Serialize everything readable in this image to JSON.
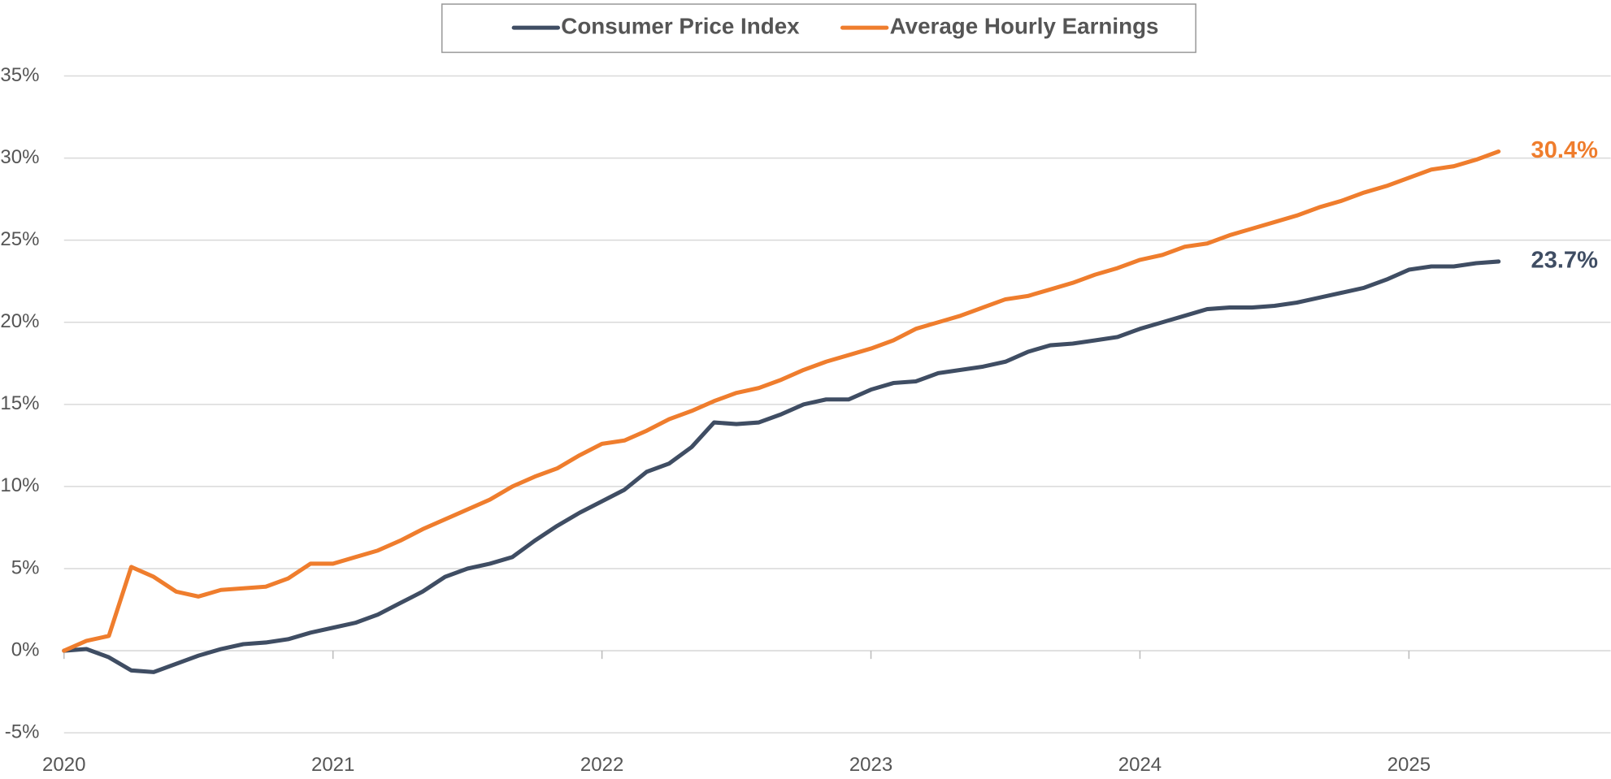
{
  "chart_data": {
    "type": "line",
    "x": [
      2020,
      2020.0833,
      2020.1667,
      2020.25,
      2020.3333,
      2020.4167,
      2020.5,
      2020.5833,
      2020.6667,
      2020.75,
      2020.8333,
      2020.9167,
      2021,
      2021.0833,
      2021.1667,
      2021.25,
      2021.3333,
      2021.4167,
      2021.5,
      2021.5833,
      2021.6667,
      2021.75,
      2021.8333,
      2021.9167,
      2022,
      2022.0833,
      2022.1667,
      2022.25,
      2022.3333,
      2022.4167,
      2022.5,
      2022.5833,
      2022.6667,
      2022.75,
      2022.8333,
      2022.9167,
      2023,
      2023.0833,
      2023.1667,
      2023.25,
      2023.3333,
      2023.4167,
      2023.5,
      2023.5833,
      2023.6667,
      2023.75,
      2023.8333,
      2023.9167,
      2024,
      2024.0833,
      2024.1667,
      2024.25,
      2024.3333,
      2024.4167,
      2024.5,
      2024.5833,
      2024.6667,
      2024.75,
      2024.8333,
      2024.9167,
      2025,
      2025.0833,
      2025.1667,
      2025.25,
      2025.3333
    ],
    "series": [
      {
        "name": "Consumer Price Index",
        "color": "#3f4d63",
        "end_label": "23.7%",
        "values": [
          0,
          0.1,
          -0.4,
          -1.2,
          -1.3,
          -0.8,
          -0.3,
          0.1,
          0.4,
          0.5,
          0.7,
          1.1,
          1.4,
          1.7,
          2.2,
          2.9,
          3.6,
          4.5,
          5.0,
          5.3,
          5.7,
          6.7,
          7.6,
          8.4,
          9.1,
          9.8,
          10.9,
          11.4,
          12.4,
          13.9,
          13.8,
          13.9,
          14.4,
          15.0,
          15.3,
          15.3,
          15.9,
          16.3,
          16.4,
          16.9,
          17.1,
          17.3,
          17.6,
          18.2,
          18.6,
          18.7,
          18.9,
          19.1,
          19.6,
          20.0,
          20.4,
          20.8,
          20.9,
          20.9,
          21.0,
          21.2,
          21.5,
          21.8,
          22.1,
          22.6,
          23.2,
          23.4,
          23.4,
          23.6,
          23.7
        ]
      },
      {
        "name": "Average Hourly Earnings",
        "color": "#ef7d2d",
        "end_label": "30.4%",
        "values": [
          0,
          0.6,
          0.9,
          5.1,
          4.5,
          3.6,
          3.3,
          3.7,
          3.8,
          3.9,
          4.4,
          5.3,
          5.3,
          5.7,
          6.1,
          6.7,
          7.4,
          8.0,
          8.6,
          9.2,
          10.0,
          10.6,
          11.1,
          11.9,
          12.6,
          12.8,
          13.4,
          14.1,
          14.6,
          15.2,
          15.7,
          16.0,
          16.5,
          17.1,
          17.6,
          18.0,
          18.4,
          18.9,
          19.6,
          20.0,
          20.4,
          20.9,
          21.4,
          21.6,
          22.0,
          22.4,
          22.9,
          23.3,
          23.8,
          24.1,
          24.6,
          24.8,
          25.3,
          25.7,
          26.1,
          26.5,
          27.0,
          27.4,
          27.9,
          28.3,
          28.8,
          29.3,
          29.5,
          29.9,
          30.4
        ]
      }
    ],
    "xlim": [
      2020,
      2025.75
    ],
    "xticks": [
      2020,
      2021,
      2022,
      2023,
      2024,
      2025
    ],
    "ylim": [
      -5,
      35
    ],
    "yticks": [
      {
        "value": -5,
        "label": "-5%"
      },
      {
        "value": 0,
        "label": "0%"
      },
      {
        "value": 5,
        "label": "5%"
      },
      {
        "value": 10,
        "label": "10%"
      },
      {
        "value": 15,
        "label": "15%"
      },
      {
        "value": 20,
        "label": "20%"
      },
      {
        "value": 25,
        "label": "25%"
      },
      {
        "value": 30,
        "label": "30%"
      },
      {
        "value": 35,
        "label": "35%"
      }
    ],
    "grid": true,
    "legend": "top"
  }
}
